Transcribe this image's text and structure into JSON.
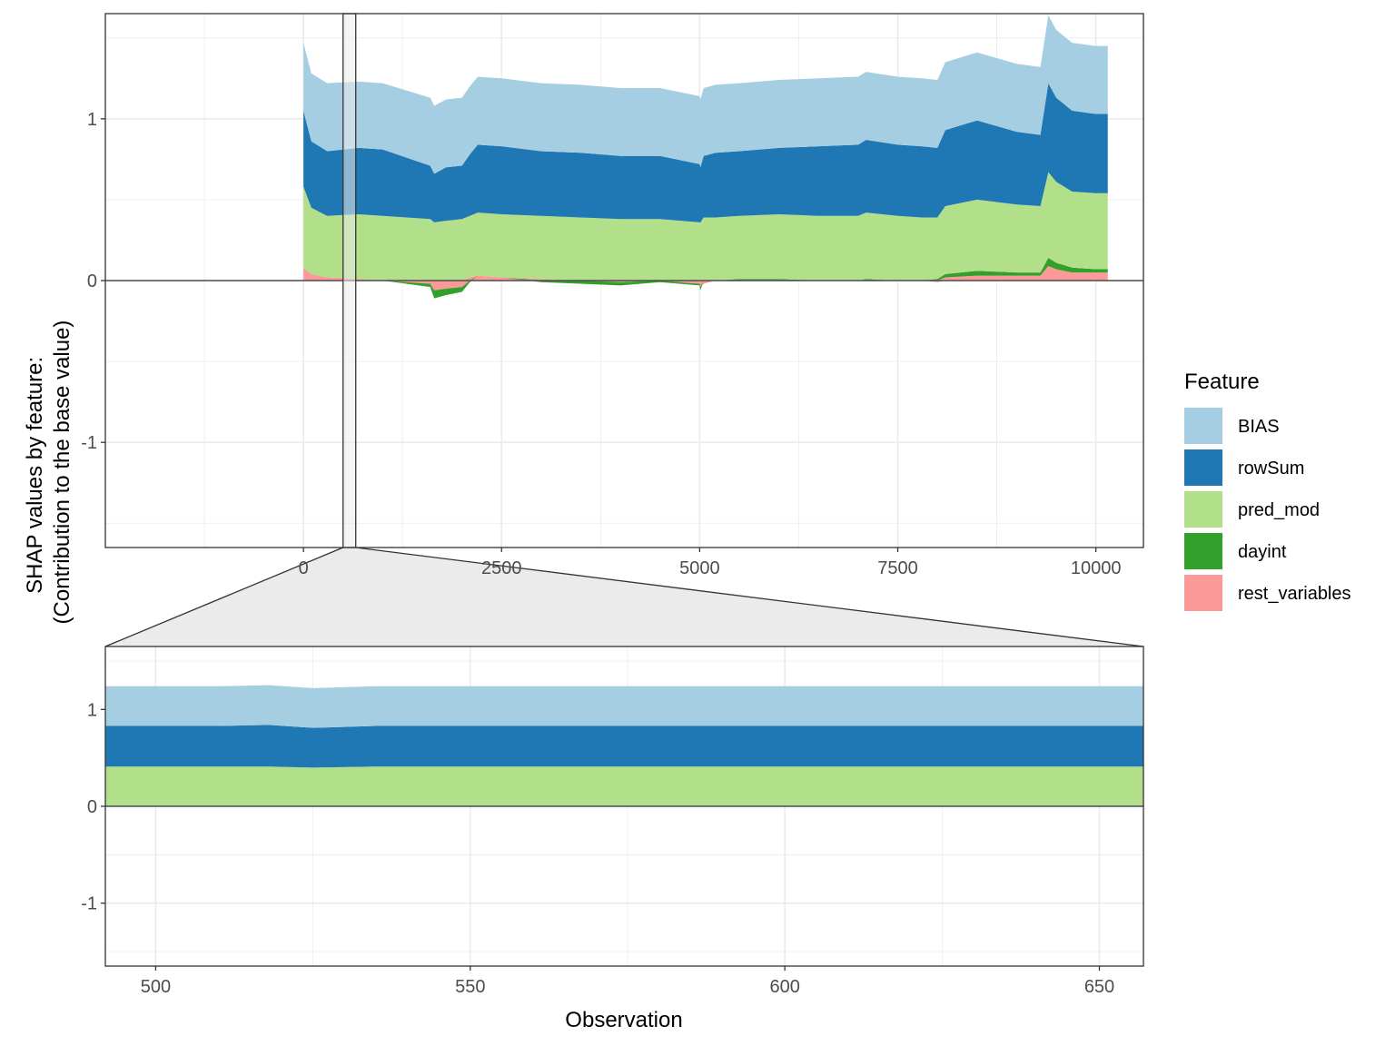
{
  "chart_data": [
    {
      "panel": "overview",
      "type": "area",
      "stacked": true,
      "x_domain": [
        -2500,
        10600
      ],
      "xlim": [
        -2500,
        10600
      ],
      "ylim": [
        -1.65,
        1.65
      ],
      "x_ticks": [
        0,
        2500,
        5000,
        7500,
        10000
      ],
      "x_tick_labels": [
        "0",
        "2500",
        "5000",
        "7500",
        "10000"
      ],
      "y_ticks": [
        -1,
        0,
        1
      ],
      "y_tick_labels": [
        "-1",
        "0",
        "1"
      ],
      "grid": true,
      "zero_line": 0,
      "zoom_window": [
        500,
        660
      ],
      "x": [
        0,
        100,
        300,
        700,
        1000,
        1600,
        1650,
        1800,
        2000,
        2100,
        2200,
        2500,
        3000,
        3500,
        4000,
        4500,
        5000,
        5010,
        5050,
        5200,
        5500,
        6000,
        6500,
        7000,
        7100,
        7500,
        7800,
        8000,
        8100,
        8500,
        9000,
        9300,
        9400,
        9500,
        9700,
        10000,
        10150
      ],
      "series": [
        {
          "name": "rest_variables",
          "values": [
            0.08,
            0.04,
            0.02,
            0.01,
            0.0,
            -0.02,
            -0.06,
            -0.05,
            -0.04,
            0.02,
            0.03,
            0.02,
            0.01,
            0.0,
            -0.01,
            0.0,
            -0.02,
            -0.04,
            -0.02,
            0.0,
            0.0,
            0.0,
            0.0,
            0.0,
            0.0,
            0.0,
            0.0,
            -0.01,
            0.02,
            0.03,
            0.03,
            0.03,
            0.09,
            0.07,
            0.05,
            0.05,
            0.05
          ]
        },
        {
          "name": "dayint",
          "values": [
            0.0,
            0.0,
            0.0,
            0.0,
            0.0,
            -0.02,
            -0.05,
            -0.04,
            -0.03,
            -0.01,
            0.0,
            0.0,
            -0.01,
            -0.02,
            -0.02,
            -0.01,
            -0.01,
            -0.02,
            0.0,
            0.0,
            0.01,
            0.01,
            0.0,
            0.0,
            0.01,
            0.0,
            0.0,
            0.01,
            0.02,
            0.03,
            0.02,
            0.02,
            0.05,
            0.04,
            0.03,
            0.02,
            0.02
          ]
        },
        {
          "name": "pred_mod",
          "values": [
            0.5,
            0.41,
            0.38,
            0.4,
            0.4,
            0.38,
            0.36,
            0.37,
            0.38,
            0.38,
            0.39,
            0.39,
            0.39,
            0.39,
            0.38,
            0.38,
            0.36,
            0.36,
            0.39,
            0.39,
            0.39,
            0.4,
            0.4,
            0.4,
            0.41,
            0.4,
            0.39,
            0.38,
            0.42,
            0.44,
            0.42,
            0.41,
            0.53,
            0.5,
            0.47,
            0.47,
            0.47
          ]
        },
        {
          "name": "rowSum",
          "values": [
            0.47,
            0.41,
            0.4,
            0.41,
            0.41,
            0.33,
            0.3,
            0.33,
            0.33,
            0.38,
            0.42,
            0.42,
            0.4,
            0.4,
            0.39,
            0.39,
            0.36,
            0.34,
            0.38,
            0.4,
            0.4,
            0.41,
            0.43,
            0.44,
            0.45,
            0.44,
            0.44,
            0.43,
            0.47,
            0.49,
            0.45,
            0.44,
            0.55,
            0.52,
            0.5,
            0.49,
            0.49
          ]
        },
        {
          "name": "BIAS",
          "values": [
            0.42,
            0.42,
            0.42,
            0.41,
            0.41,
            0.42,
            0.42,
            0.42,
            0.42,
            0.42,
            0.42,
            0.42,
            0.42,
            0.42,
            0.42,
            0.42,
            0.42,
            0.42,
            0.42,
            0.42,
            0.42,
            0.42,
            0.42,
            0.42,
            0.42,
            0.42,
            0.42,
            0.42,
            0.42,
            0.42,
            0.42,
            0.42,
            0.42,
            0.42,
            0.42,
            0.42,
            0.42
          ]
        }
      ]
    },
    {
      "panel": "zoom",
      "type": "area",
      "stacked": true,
      "xlim": [
        492,
        657
      ],
      "ylim": [
        -1.65,
        1.65
      ],
      "x_ticks": [
        500,
        550,
        600,
        650
      ],
      "x_tick_labels": [
        "500",
        "550",
        "600",
        "650"
      ],
      "y_ticks": [
        -1,
        0,
        1
      ],
      "y_tick_labels": [
        "-1",
        "0",
        "1"
      ],
      "grid": true,
      "zero_line": 0,
      "x": [
        492,
        510,
        518,
        525,
        535,
        545,
        555,
        560,
        570,
        580,
        590,
        600,
        610,
        620,
        630,
        640,
        650,
        657
      ],
      "series": [
        {
          "name": "rest_variables",
          "values": [
            0.0,
            0.0,
            0.0,
            0.0,
            0.0,
            0.0,
            0.0,
            0.0,
            0.0,
            0.0,
            0.0,
            0.0,
            0.0,
            0.0,
            0.0,
            0.0,
            0.0,
            0.0
          ]
        },
        {
          "name": "dayint",
          "values": [
            0.0,
            0.0,
            0.0,
            0.0,
            0.0,
            0.0,
            0.0,
            0.0,
            0.0,
            0.0,
            0.0,
            0.0,
            0.0,
            0.0,
            0.0,
            0.0,
            0.0,
            0.0
          ]
        },
        {
          "name": "pred_mod",
          "values": [
            0.41,
            0.41,
            0.41,
            0.4,
            0.41,
            0.41,
            0.41,
            0.41,
            0.41,
            0.41,
            0.41,
            0.41,
            0.41,
            0.41,
            0.41,
            0.41,
            0.41,
            0.41
          ]
        },
        {
          "name": "rowSum",
          "values": [
            0.42,
            0.42,
            0.43,
            0.41,
            0.42,
            0.42,
            0.42,
            0.42,
            0.42,
            0.42,
            0.42,
            0.42,
            0.42,
            0.42,
            0.42,
            0.42,
            0.42,
            0.42
          ]
        },
        {
          "name": "BIAS",
          "values": [
            0.41,
            0.41,
            0.41,
            0.41,
            0.41,
            0.41,
            0.41,
            0.41,
            0.41,
            0.41,
            0.41,
            0.41,
            0.41,
            0.41,
            0.41,
            0.41,
            0.41,
            0.41
          ]
        }
      ]
    }
  ],
  "axes": {
    "ylabel_line1": "SHAP values by feature:",
    "ylabel_line2": "(Contribution to the base value)",
    "xlabel": "Observation"
  },
  "legend": {
    "title": "Feature",
    "placement": "right",
    "items": [
      {
        "label": "BIAS",
        "color": "#a6cee3"
      },
      {
        "label": "rowSum",
        "color": "#1f78b4"
      },
      {
        "label": "pred_mod",
        "color": "#b2df8a"
      },
      {
        "label": "dayint",
        "color": "#33a02c"
      },
      {
        "label": "rest_variables",
        "color": "#fb9a99"
      }
    ]
  },
  "colors": {
    "BIAS": "#a6cee3",
    "rowSum": "#1f78b4",
    "pred_mod": "#b2df8a",
    "dayint": "#33a02c",
    "rest_variables": "#fb9a99",
    "grid": "#ebebeb",
    "panel_border": "#333333",
    "zoom_fill": "#ebebeb"
  }
}
